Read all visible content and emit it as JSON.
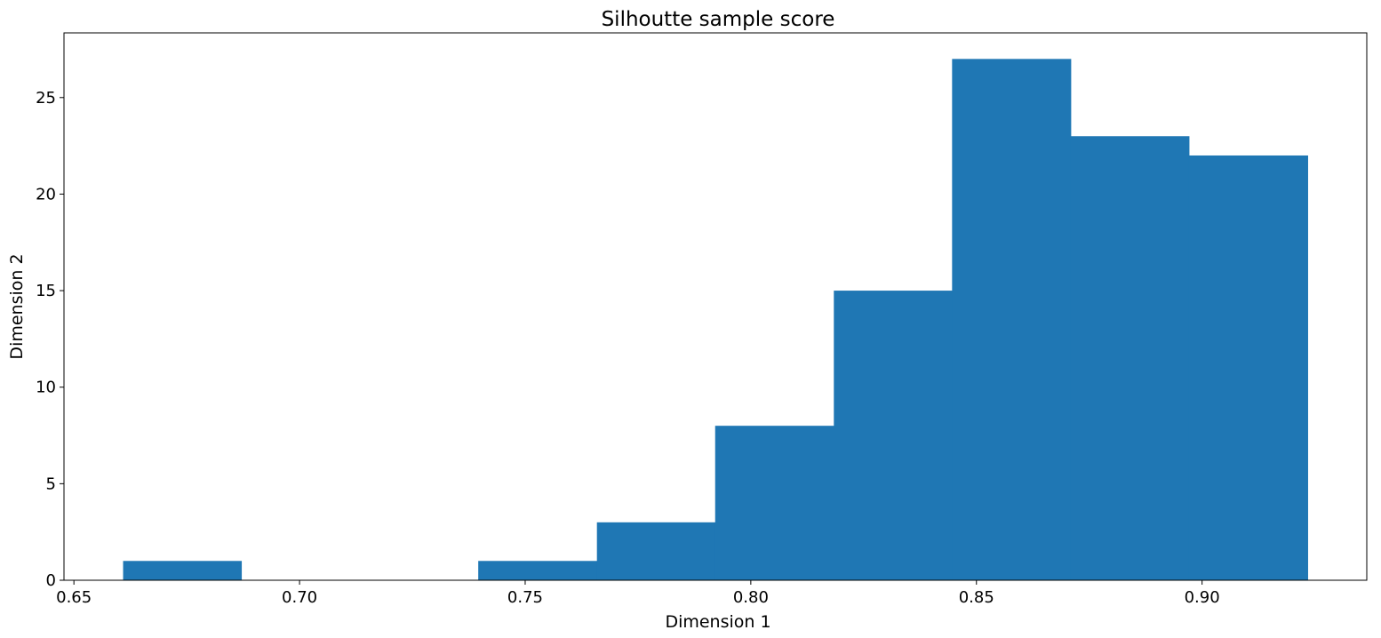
{
  "chart_data": {
    "type": "bar",
    "subtype": "histogram",
    "title": "Silhoutte sample score",
    "xlabel": "Dimension 1",
    "ylabel": "Dimension 2",
    "bins": [
      {
        "start": 0.6609,
        "end": 0.6871,
        "count": 1
      },
      {
        "start": 0.6871,
        "end": 0.7134,
        "count": 0
      },
      {
        "start": 0.7134,
        "end": 0.7396,
        "count": 0
      },
      {
        "start": 0.7396,
        "end": 0.7659,
        "count": 1
      },
      {
        "start": 0.7659,
        "end": 0.7921,
        "count": 3
      },
      {
        "start": 0.7921,
        "end": 0.8184,
        "count": 8
      },
      {
        "start": 0.8184,
        "end": 0.8446,
        "count": 15
      },
      {
        "start": 0.8446,
        "end": 0.8709,
        "count": 27
      },
      {
        "start": 0.8709,
        "end": 0.8971,
        "count": 23
      },
      {
        "start": 0.8971,
        "end": 0.9234,
        "count": 22
      }
    ],
    "xlim": [
      0.6478,
      0.9365
    ],
    "ylim": [
      0,
      28.35
    ],
    "xticks": [
      0.65,
      0.7,
      0.75,
      0.8,
      0.85,
      0.9
    ],
    "xtick_labels": [
      "0.65",
      "0.70",
      "0.75",
      "0.80",
      "0.85",
      "0.90"
    ],
    "yticks": [
      0,
      5,
      10,
      15,
      20,
      25
    ],
    "ytick_labels": [
      "0",
      "5",
      "10",
      "15",
      "20",
      "25"
    ],
    "grid": false,
    "color": "#1f77b4"
  }
}
